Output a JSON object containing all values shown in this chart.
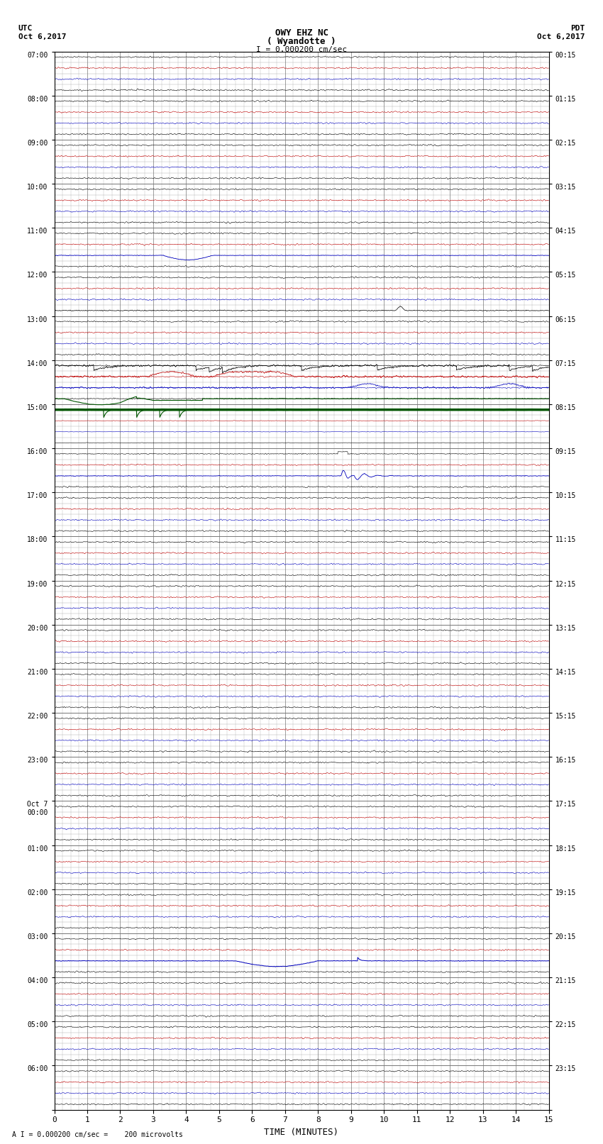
{
  "title_line1": "OWY EHZ NC",
  "title_line2": "( Wyandotte )",
  "scale_text": "I = 0.000200 cm/sec",
  "utc_label": "UTC",
  "utc_date": "Oct 6,2017",
  "pdt_label": "PDT",
  "pdt_date": "Oct 6,2017",
  "footer_text": "A I = 0.000200 cm/sec =    200 microvolts",
  "xlabel": "TIME (MINUTES)",
  "bg_color": "#ffffff",
  "trace_color_black": "#000000",
  "trace_color_red": "#bb0000",
  "trace_color_blue": "#0000bb",
  "trace_color_green": "#005500",
  "grid_color_major": "#777777",
  "grid_color_minor": "#aaaaaa",
  "num_hours": 24,
  "traces_per_hour": 4,
  "x_ticks": [
    0,
    1,
    2,
    3,
    4,
    5,
    6,
    7,
    8,
    9,
    10,
    11,
    12,
    13,
    14,
    15
  ],
  "y_ticks_utc": [
    "07:00",
    "",
    "",
    "",
    "08:00",
    "",
    "",
    "",
    "09:00",
    "",
    "",
    "",
    "10:00",
    "",
    "",
    "",
    "11:00",
    "",
    "",
    "",
    "12:00",
    "",
    "",
    "",
    "13:00",
    "",
    "",
    "",
    "14:00",
    "",
    "",
    "",
    "15:00",
    "",
    "",
    "",
    "16:00",
    "",
    "",
    "",
    "17:00",
    "",
    "",
    "",
    "18:00",
    "",
    "",
    "",
    "19:00",
    "",
    "",
    "",
    "20:00",
    "",
    "",
    "",
    "21:00",
    "",
    "",
    "",
    "22:00",
    "",
    "",
    "",
    "23:00",
    "",
    "",
    "",
    "Oct 7 00:00",
    "",
    "",
    "",
    "01:00",
    "",
    "",
    "",
    "02:00",
    "",
    "",
    "",
    "03:00",
    "",
    "",
    "",
    "04:00",
    "",
    "",
    "",
    "05:00",
    "",
    "",
    "",
    "06:00",
    "",
    "",
    ""
  ],
  "y_ticks_pdt": [
    "00:15",
    "",
    "",
    "",
    "01:15",
    "",
    "",
    "",
    "02:15",
    "",
    "",
    "",
    "03:15",
    "",
    "",
    "",
    "04:15",
    "",
    "",
    "",
    "05:15",
    "",
    "",
    "",
    "06:15",
    "",
    "",
    "",
    "07:15",
    "",
    "",
    "",
    "08:15",
    "",
    "",
    "",
    "09:15",
    "",
    "",
    "",
    "10:15",
    "",
    "",
    "",
    "11:15",
    "",
    "",
    "",
    "12:15",
    "",
    "",
    "",
    "13:15",
    "",
    "",
    "",
    "14:15",
    "",
    "",
    "",
    "15:15",
    "",
    "",
    "",
    "16:15",
    "",
    "",
    "",
    "17:15",
    "",
    "",
    "",
    "18:15",
    "",
    "",
    "",
    "19:15",
    "",
    "",
    "",
    "20:15",
    "",
    "",
    "",
    "21:15",
    "",
    "",
    "",
    "22:15",
    "",
    "",
    "",
    "23:15",
    "",
    "",
    ""
  ]
}
